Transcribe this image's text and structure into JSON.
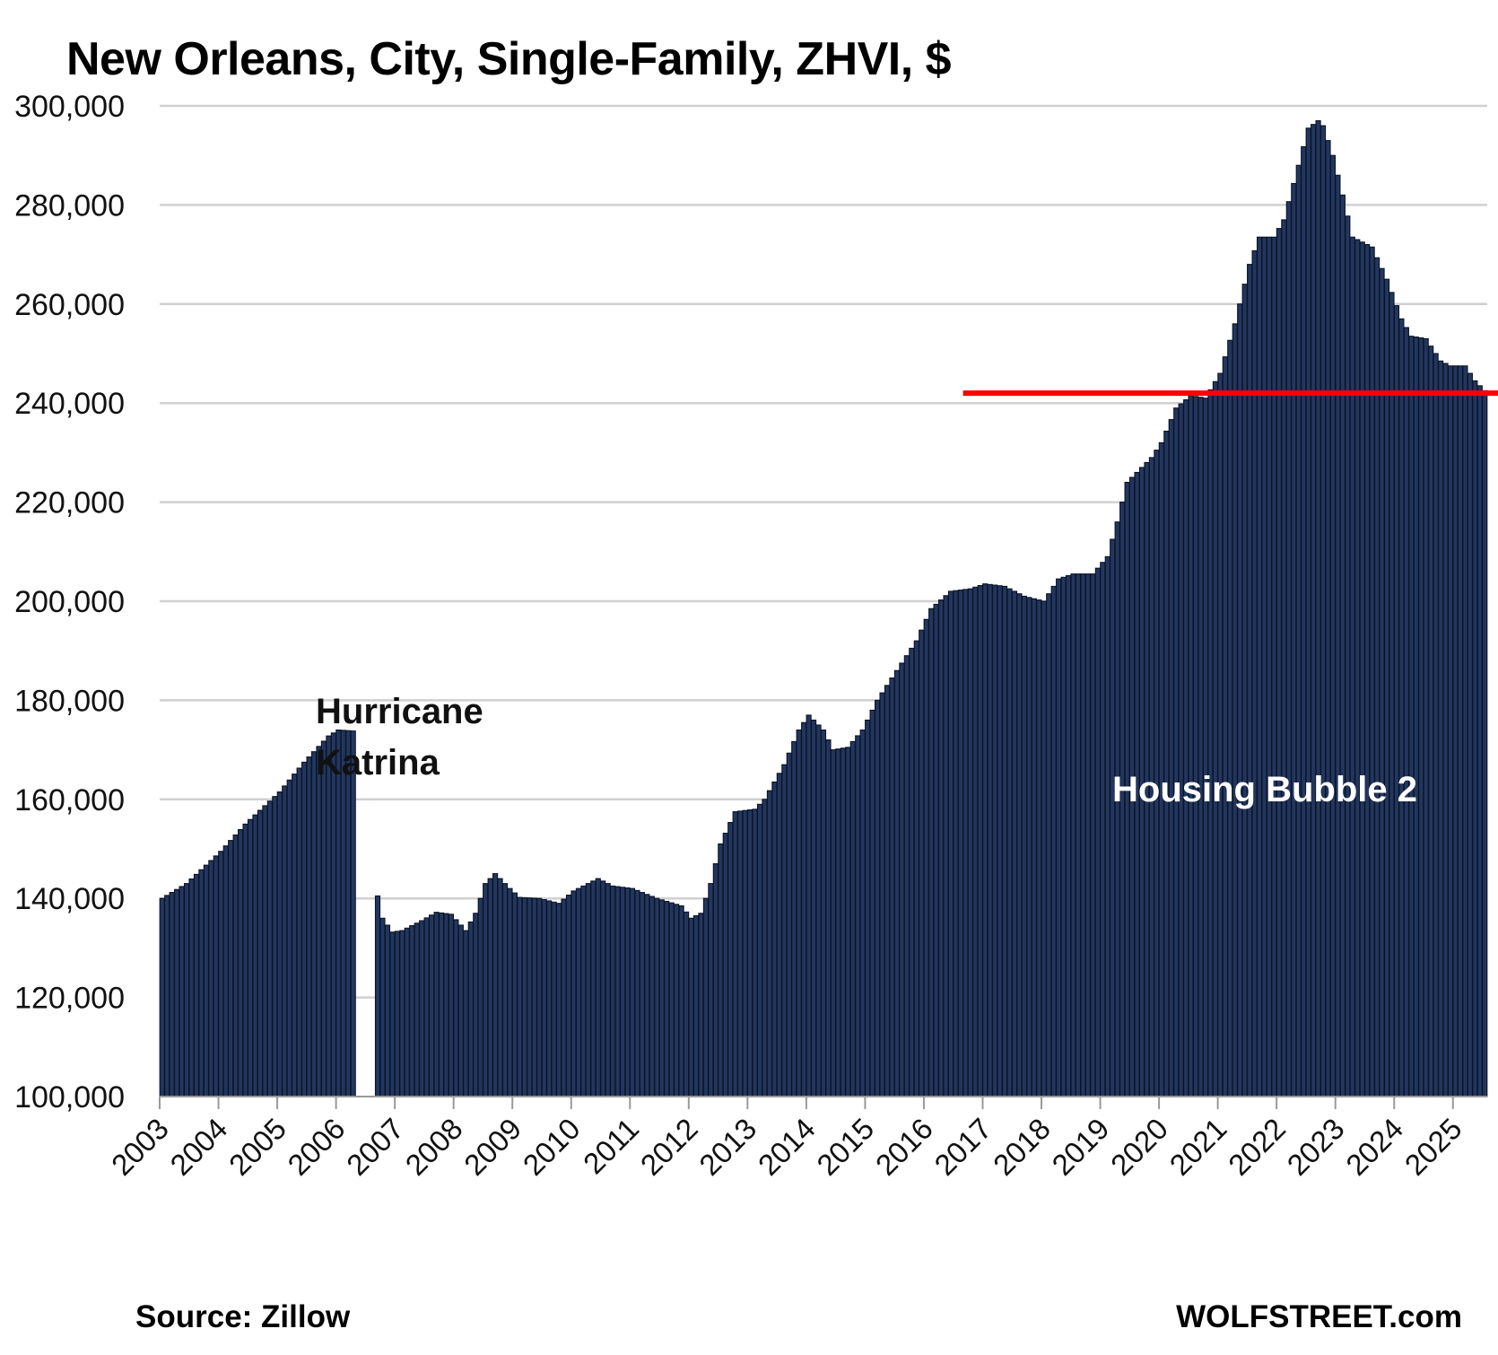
{
  "chart_data": {
    "type": "bar",
    "title": "New Orleans, City, Single-Family, ZHVI, $",
    "xlabel": "",
    "ylabel": "",
    "ylim": [
      100000,
      300000
    ],
    "yticks": [
      100000,
      120000,
      140000,
      160000,
      180000,
      200000,
      220000,
      240000,
      260000,
      280000,
      300000
    ],
    "ytick_labels": [
      "100,000",
      "120,000",
      "140,000",
      "160,000",
      "180,000",
      "200,000",
      "220,000",
      "240,000",
      "260,000",
      "280,000",
      "300,000"
    ],
    "xtick_labels": [
      "2003",
      "2004",
      "2005",
      "2006",
      "2007",
      "2008",
      "2009",
      "2010",
      "2011",
      "2012",
      "2013",
      "2014",
      "2015",
      "2016",
      "2017",
      "2018",
      "2019",
      "2020",
      "2021",
      "2022",
      "2023",
      "2024",
      "2025"
    ],
    "frequency": "monthly",
    "first_month": "2003-01",
    "last_month": "2025-07",
    "gap_months": [
      "2006-05",
      "2006-06",
      "2006-07",
      "2006-08"
    ],
    "anchors": [
      [
        "2003-01",
        140000
      ],
      [
        "2003-06",
        143000
      ],
      [
        "2004-01",
        149500
      ],
      [
        "2004-06",
        155000
      ],
      [
        "2005-01",
        161500
      ],
      [
        "2005-06",
        167500
      ],
      [
        "2005-11",
        172800
      ],
      [
        "2006-01",
        174000
      ],
      [
        "2006-04",
        173800
      ],
      [
        "2006-09",
        140500
      ],
      [
        "2006-10",
        136000
      ],
      [
        "2006-12",
        133200
      ],
      [
        "2007-02",
        133500
      ],
      [
        "2007-06",
        135500
      ],
      [
        "2007-09",
        137200
      ],
      [
        "2007-12",
        136800
      ],
      [
        "2008-03",
        133500
      ],
      [
        "2008-05",
        137000
      ],
      [
        "2008-07",
        143000
      ],
      [
        "2008-09",
        145000
      ],
      [
        "2008-12",
        142000
      ],
      [
        "2009-02",
        140200
      ],
      [
        "2009-06",
        140000
      ],
      [
        "2009-10",
        139000
      ],
      [
        "2010-01",
        141500
      ],
      [
        "2010-06",
        144000
      ],
      [
        "2010-09",
        142500
      ],
      [
        "2011-01",
        142000
      ],
      [
        "2011-06",
        140000
      ],
      [
        "2011-11",
        138500
      ],
      [
        "2012-01",
        136000
      ],
      [
        "2012-03",
        137000
      ],
      [
        "2012-05",
        143000
      ],
      [
        "2012-07",
        151000
      ],
      [
        "2012-10",
        157500
      ],
      [
        "2013-02",
        158000
      ],
      [
        "2013-04",
        160000
      ],
      [
        "2013-08",
        167000
      ],
      [
        "2013-11",
        174000
      ],
      [
        "2014-01",
        177000
      ],
      [
        "2014-04",
        174000
      ],
      [
        "2014-06",
        170000
      ],
      [
        "2014-09",
        170500
      ],
      [
        "2014-12",
        174000
      ],
      [
        "2015-03",
        180000
      ],
      [
        "2015-07",
        186000
      ],
      [
        "2015-11",
        192000
      ],
      [
        "2016-02",
        198500
      ],
      [
        "2016-06",
        202000
      ],
      [
        "2016-10",
        202500
      ],
      [
        "2017-01",
        203500
      ],
      [
        "2017-05",
        203000
      ],
      [
        "2017-09",
        201000
      ],
      [
        "2018-01",
        200000
      ],
      [
        "2018-04",
        204500
      ],
      [
        "2018-07",
        205500
      ],
      [
        "2018-11",
        205500
      ],
      [
        "2019-02",
        209000
      ],
      [
        "2019-04",
        216000
      ],
      [
        "2019-06",
        224000
      ],
      [
        "2019-11",
        229000
      ],
      [
        "2020-01",
        232000
      ],
      [
        "2020-04",
        239000
      ],
      [
        "2020-07",
        241500
      ],
      [
        "2020-10",
        241000
      ],
      [
        "2021-01",
        246000
      ],
      [
        "2021-04",
        256000
      ],
      [
        "2021-07",
        268000
      ],
      [
        "2021-09",
        273500
      ],
      [
        "2021-12",
        273500
      ],
      [
        "2022-02",
        277000
      ],
      [
        "2022-05",
        288000
      ],
      [
        "2022-07",
        295500
      ],
      [
        "2022-09",
        297000
      ],
      [
        "2022-10",
        296000
      ],
      [
        "2022-12",
        290000
      ],
      [
        "2023-02",
        282000
      ],
      [
        "2023-04",
        273500
      ],
      [
        "2023-06",
        272500
      ],
      [
        "2023-08",
        271500
      ],
      [
        "2023-11",
        265000
      ],
      [
        "2024-02",
        257000
      ],
      [
        "2024-04",
        253500
      ],
      [
        "2024-07",
        253000
      ],
      [
        "2024-10",
        248500
      ],
      [
        "2024-12",
        247500
      ],
      [
        "2025-03",
        247500
      ],
      [
        "2025-05",
        244500
      ],
      [
        "2025-07",
        242500
      ]
    ],
    "reference_line": {
      "value": 242000,
      "start": "2016-09",
      "color": "#ff0000"
    },
    "bar_color": "#22365f",
    "bar_edge_color": "#0b1425",
    "grid": "horizontal",
    "legend": "none",
    "annotations": [
      {
        "text_lines": [
          "Hurricane",
          "Katrina"
        ],
        "color": "#111111"
      },
      {
        "text": "Housing Bubble 2",
        "color": "#ffffff"
      }
    ]
  },
  "footer": {
    "source": "Source: Zillow",
    "brand": "WOLFSTREET.com"
  }
}
